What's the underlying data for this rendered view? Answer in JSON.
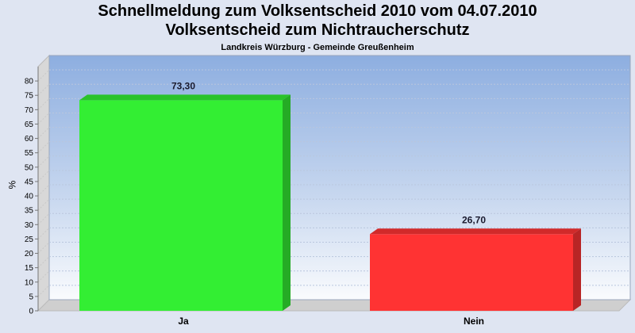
{
  "title_line1": "Schnellmeldung zum Volksentscheid 2010 vom 04.07.2010",
  "title_line2": "Volksentscheid zum Nichtraucherschutz",
  "subtitle": "Landkreis Würzburg - Gemeinde Greußenheim",
  "chart_data": {
    "type": "bar",
    "categories": [
      "Ja",
      "Nein"
    ],
    "values": [
      73.3,
      26.7
    ],
    "value_labels": [
      "73,30",
      "26,70"
    ],
    "colors": [
      "#33ee33",
      "#ff3333"
    ],
    "ylabel": "%",
    "ylim": [
      0,
      85
    ],
    "yticks": [
      0,
      5,
      10,
      15,
      20,
      25,
      30,
      35,
      40,
      45,
      50,
      55,
      60,
      65,
      70,
      75,
      80
    ],
    "grid": true,
    "three_d": true
  }
}
